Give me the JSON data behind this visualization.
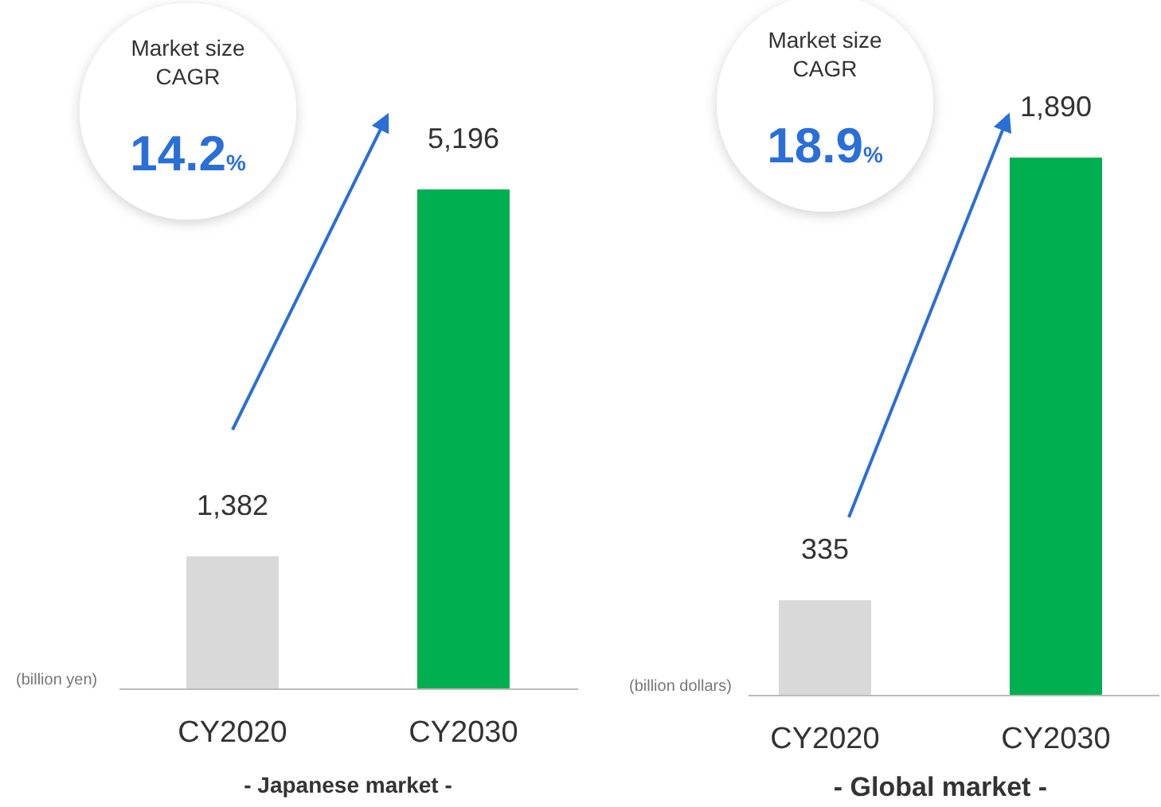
{
  "chart_data": [
    {
      "type": "bar",
      "title": "- Japanese market -",
      "ylabel": "(billion yen)",
      "categories": [
        "CY2020",
        "CY2030"
      ],
      "values": [
        1382,
        5196
      ],
      "value_labels": [
        "1,382",
        "5,196"
      ],
      "colors": [
        "#d9d9d9",
        "#00b050"
      ],
      "annotations": [
        "Market size\nCAGR",
        "14.2%"
      ]
    },
    {
      "type": "bar",
      "title": "- Global market -",
      "ylabel": "(billion dollars)",
      "categories": [
        "CY2020",
        "CY2030"
      ],
      "values": [
        335,
        1890
      ],
      "value_labels": [
        "335",
        "1,890"
      ],
      "colors": [
        "#d9d9d9",
        "#00b050"
      ],
      "annotations": [
        "Market size\nCAGR",
        "18.9%"
      ]
    }
  ]
}
